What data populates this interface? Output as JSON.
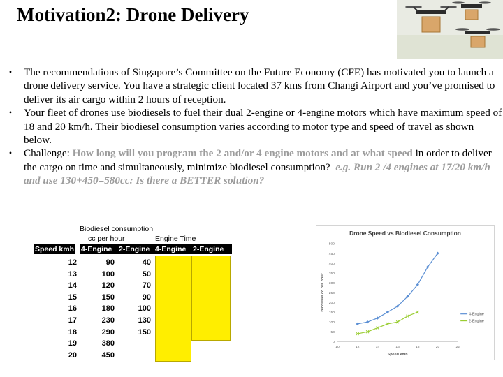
{
  "slide": {
    "title": "Motivation2: Drone Delivery"
  },
  "hero_image": {
    "description_icon": "drones-carrying-boxes-icon"
  },
  "bullets": [
    {
      "marker": "•",
      "text": "The recommendations of Singapore’s Committee on the Future Economy (CFE) has motivated you to launch a drone delivery service. You have a strategic client located 37 kms from Changi Airport and you’ve promised to deliver its air cargo within 2 hours of reception."
    },
    {
      "marker": "•",
      "text": "Your fleet of drones use biodiesels to fuel their dual 2-engine or 4-engine motors which have maximum speed of 18 and 20 km/h. Their biodiesel consumption varies according to motor type and speed of travel as shown below."
    },
    {
      "marker": "•",
      "prefix": "Challenge: ",
      "highlight": "How long will you program the 2 and/or 4 engine motors and at what speed",
      "middle": " in order to deliver the cargo on time and simultaneously, minimize biodiesel consumption?",
      "highlight_italic": "e.g. Run 2 /4 engines at 17/20 km/h and use 130+450=580cc: Is there a BETTER solution?"
    }
  ],
  "table": {
    "caption1": "Biodiesel consumption",
    "caption2": "cc per hour",
    "caption3": "Engine Time",
    "headers": [
      "Speed kmh",
      "4-Engine",
      "2-Engine",
      "4-Engine",
      "2-Engine"
    ],
    "rows": [
      {
        "speed": "12",
        "e4": "90",
        "e2": "40"
      },
      {
        "speed": "13",
        "e4": "100",
        "e2": "50"
      },
      {
        "speed": "14",
        "e4": "120",
        "e2": "70"
      },
      {
        "speed": "15",
        "e4": "150",
        "e2": "90"
      },
      {
        "speed": "16",
        "e4": "180",
        "e2": "100"
      },
      {
        "speed": "17",
        "e4": "230",
        "e2": "130"
      },
      {
        "speed": "18",
        "e4": "290",
        "e2": "150"
      },
      {
        "speed": "19",
        "e4": "380",
        "e2": ""
      },
      {
        "speed": "20",
        "e4": "450",
        "e2": ""
      }
    ],
    "fill_color": "#ffee00"
  },
  "chart_data": {
    "type": "line",
    "title": "Drone Speed vs Biodiesel Consumption",
    "xlabel": "Speed kmh",
    "ylabel": "Biodiesel cc per hour",
    "xlim": [
      10,
      22
    ],
    "ylim": [
      0,
      500
    ],
    "xticks": [
      "10",
      "12",
      "14",
      "16",
      "18",
      "20",
      "22"
    ],
    "yticks": [
      "0",
      "50",
      "100",
      "150",
      "200",
      "250",
      "300",
      "350",
      "400",
      "450",
      "500"
    ],
    "grid": false,
    "legend": "right",
    "series": [
      {
        "name": "4-Engine",
        "color": "#5b8fd4",
        "x": [
          12,
          13,
          14,
          15,
          16,
          17,
          18,
          19,
          20
        ],
        "y": [
          90,
          100,
          120,
          150,
          180,
          230,
          290,
          380,
          450
        ]
      },
      {
        "name": "2-Engine",
        "color": "#9acd32",
        "x": [
          12,
          13,
          14,
          15,
          16,
          17,
          18
        ],
        "y": [
          40,
          50,
          70,
          90,
          100,
          130,
          150
        ]
      }
    ]
  }
}
